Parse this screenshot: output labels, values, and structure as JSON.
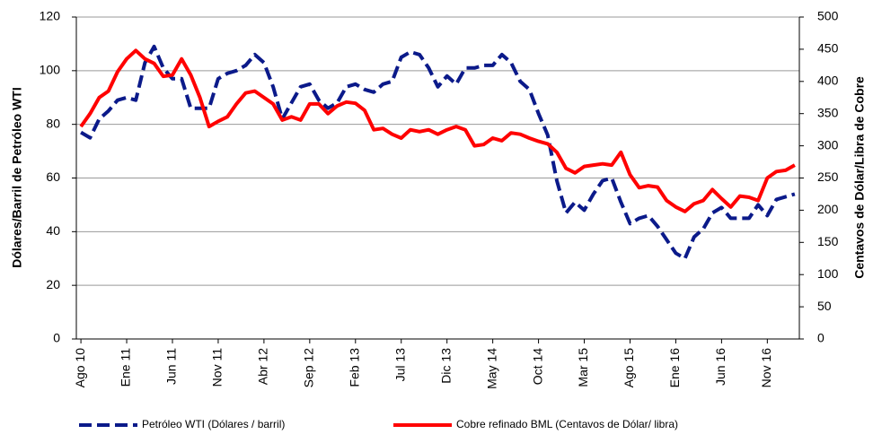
{
  "chart_data": {
    "type": "line",
    "y_label": "Dólares/Barril de Petróleo WTI",
    "y2_label": "Centavos de Dólar/Libra de Cobre",
    "categories": [
      "Ago 10",
      null,
      null,
      null,
      null,
      "Ene 11",
      null,
      null,
      null,
      null,
      "Jun 11",
      null,
      null,
      null,
      null,
      "Nov 11",
      null,
      null,
      null,
      null,
      "Abr 12",
      null,
      null,
      null,
      null,
      "Sep 12",
      null,
      null,
      null,
      null,
      "Feb 13",
      null,
      null,
      null,
      null,
      "Jul 13",
      null,
      null,
      null,
      null,
      "Dic 13",
      null,
      null,
      null,
      null,
      "May 14",
      null,
      null,
      null,
      null,
      "Oct 14",
      null,
      null,
      null,
      null,
      "Mar 15",
      null,
      null,
      null,
      null,
      "Ago 15",
      null,
      null,
      null,
      null,
      "Ene 16",
      null,
      null,
      null,
      null,
      "Jun 16",
      null,
      null,
      null,
      null,
      "Nov 16",
      null,
      null,
      null
    ],
    "series": [
      {
        "name": "Petróleo WTI (Dólares / barril)",
        "color": "#0b1a8a",
        "dashed": true,
        "values": [
          77,
          75,
          82,
          85,
          89,
          90,
          89,
          103,
          109,
          101,
          97,
          97,
          86,
          86,
          86,
          97,
          99,
          100,
          102,
          106,
          103,
          94,
          82,
          88,
          94,
          95,
          89,
          86,
          88,
          94,
          95,
          93,
          92,
          95,
          96,
          105,
          107,
          106,
          101,
          94,
          98,
          95,
          101,
          101,
          102,
          102,
          106,
          103,
          96,
          93,
          84,
          76,
          59,
          47,
          51,
          48,
          54,
          59,
          60,
          51,
          43,
          45,
          46,
          42,
          37,
          32,
          30,
          38,
          41,
          47,
          49,
          45,
          45,
          45,
          50,
          46,
          52,
          53,
          54
        ]
      },
      {
        "name": "Cobre refinado BML (Centavos de Dólar/ libra)",
        "color": "#ff0000",
        "dashed": false,
        "axis": "y2",
        "values": [
          330,
          350,
          375,
          385,
          415,
          435,
          448,
          435,
          428,
          408,
          410,
          435,
          410,
          375,
          330,
          338,
          345,
          365,
          382,
          385,
          375,
          365,
          340,
          345,
          340,
          365,
          365,
          350,
          362,
          368,
          366,
          355,
          325,
          327,
          318,
          312,
          325,
          322,
          325,
          318,
          325,
          330,
          325,
          300,
          302,
          312,
          308,
          320,
          318,
          312,
          307,
          303,
          290,
          265,
          258,
          268,
          270,
          272,
          270,
          290,
          255,
          235,
          238,
          236,
          215,
          205,
          198,
          210,
          215,
          232,
          218,
          205,
          222,
          220,
          215,
          250,
          260,
          262,
          270
        ]
      }
    ],
    "ylim": [
      0,
      120
    ],
    "yticks": [
      0,
      20,
      40,
      60,
      80,
      100,
      120
    ],
    "y2lim": [
      0,
      500
    ],
    "y2ticks": [
      0,
      50,
      100,
      150,
      200,
      250,
      300,
      350,
      400,
      450,
      500
    ],
    "grid": true,
    "legend": "bottom"
  }
}
